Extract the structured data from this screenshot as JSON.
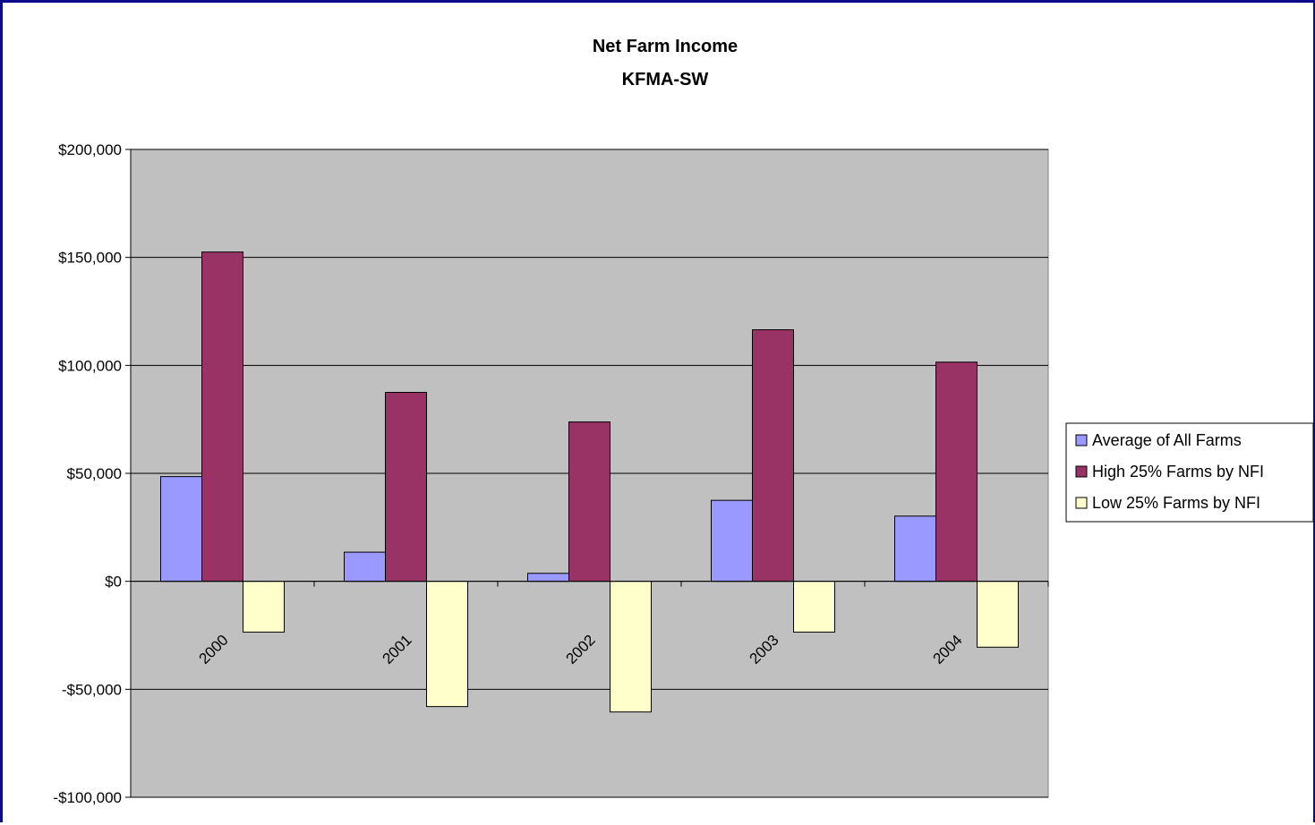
{
  "chart_data": {
    "type": "bar",
    "title": "Net Farm Income",
    "subtitle": "KFMA-SW",
    "categories": [
      "2000",
      "2001",
      "2002",
      "2003",
      "2004"
    ],
    "series": [
      {
        "name": "Average of All Farms",
        "color": "#9999ff",
        "values": [
          48500,
          13500,
          3700,
          37500,
          30200
        ]
      },
      {
        "name": "High 25% Farms by NFI",
        "color": "#993366",
        "values": [
          152500,
          87500,
          73800,
          116500,
          101500
        ]
      },
      {
        "name": "Low 25% Farms by NFI",
        "color": "#ffffcc",
        "values": [
          -23500,
          -58000,
          -60500,
          -23500,
          -30500
        ]
      }
    ],
    "ylim": [
      -100000,
      200000
    ],
    "yticks": [
      200000,
      150000,
      100000,
      50000,
      0,
      -50000,
      -100000
    ],
    "ytick_labels": [
      "$200,000",
      "$150,000",
      "$100,000",
      "$50,000",
      "$0",
      "-$50,000",
      "-$100,000"
    ],
    "plot_background": "#c0c0c0",
    "grid": true,
    "legend_position": "right",
    "xlabel": "",
    "ylabel": ""
  }
}
